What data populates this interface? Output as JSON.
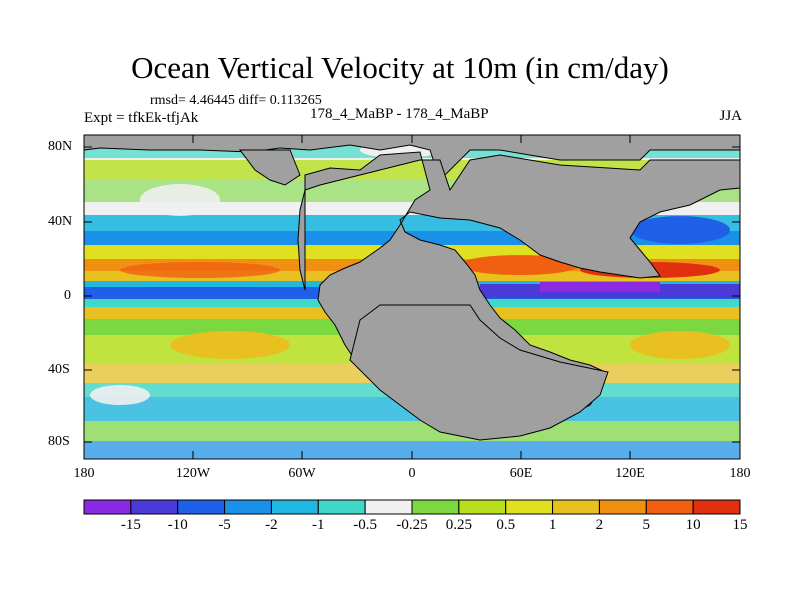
{
  "title": "Ocean Vertical Velocity at 10m (in cm/day)",
  "stats": "rmsd= 4.46445 diff= 0.113265",
  "experiment": "Expt = tfkEk-tfjAk",
  "case": "178_4_MaBP - 178_4_MaBP",
  "season": "JJA",
  "lat_ticks": [
    "80N",
    "40N",
    "0",
    "40S",
    "80S"
  ],
  "lon_ticks": [
    "180",
    "120W",
    "60W",
    "0",
    "60E",
    "120E",
    "180"
  ],
  "colorbar": {
    "labels": [
      "-15",
      "-10",
      "-5",
      "-2",
      "-1",
      "-0.5",
      "-0.25",
      "0.25",
      "0.5",
      "1",
      "2",
      "5",
      "10",
      "15"
    ],
    "colors": [
      "#8a2be2",
      "#4a3ad6",
      "#2060e8",
      "#1a90e8",
      "#20b8e0",
      "#40d8c8",
      "#f0f0f0",
      "#7cd840",
      "#b8e020",
      "#e0e020",
      "#e8c020",
      "#f09010",
      "#f06010",
      "#e03010"
    ]
  },
  "land_color": "#a0a0a0"
}
